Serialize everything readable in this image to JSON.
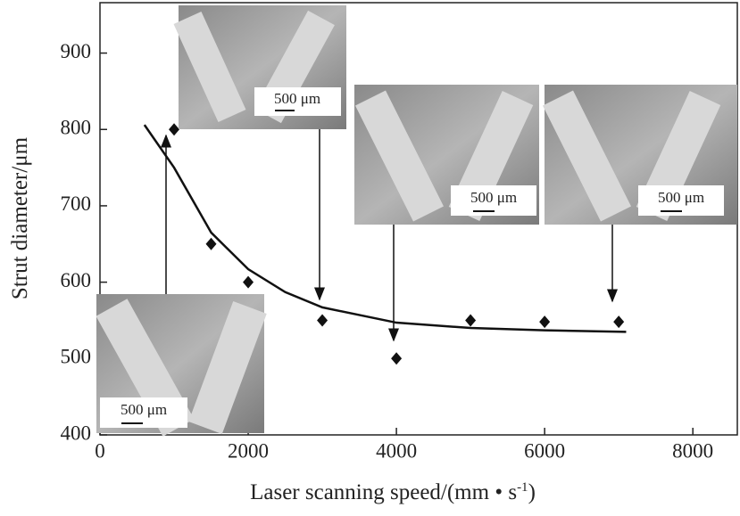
{
  "chart_data": {
    "type": "scatter",
    "x_label_parts": [
      "Laser scanning speed/(mm • s",
      "-1",
      ")"
    ],
    "y_label": "Strut diameter/μm",
    "series": [
      {
        "color": "#111111",
        "x": [
          1000,
          1500,
          2000,
          3000,
          4000,
          5000,
          6000,
          7000
        ],
        "values": [
          800,
          650,
          600,
          550,
          500,
          550,
          548,
          548
        ]
      },
      {
        "color": "#111111",
        "line": true,
        "x": [
          600,
          1000,
          1500,
          2000,
          2500,
          3000,
          4000,
          5000,
          6000,
          7100
        ],
        "values": [
          806,
          750,
          665,
          617,
          587,
          567,
          547,
          540,
          537,
          535
        ]
      }
    ],
    "xlim": [
      0,
      8600
    ],
    "xticks": [
      0,
      2000,
      4000,
      6000,
      8000
    ],
    "ylim": [
      400,
      966
    ],
    "yticks": [
      400,
      500,
      600,
      700,
      800,
      900
    ],
    "insets": [
      {
        "label": "500 μm"
      },
      {
        "label": "500 μm"
      },
      {
        "label": "500 μm"
      },
      {
        "label": "500 μm"
      }
    ]
  }
}
